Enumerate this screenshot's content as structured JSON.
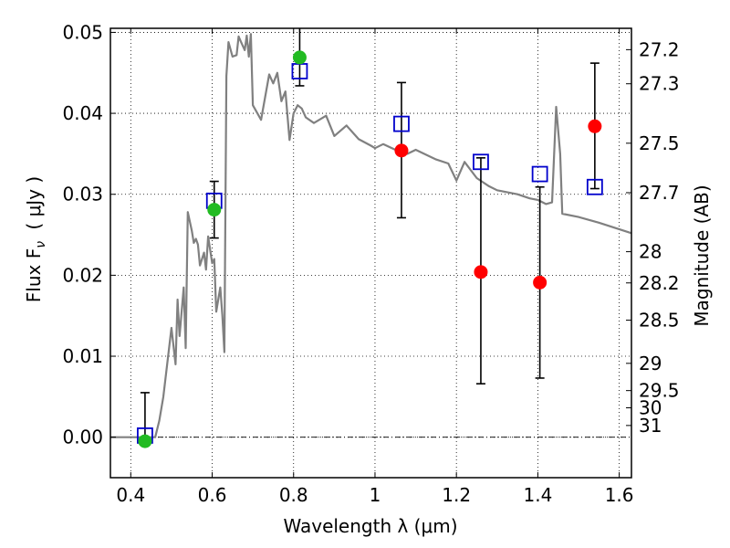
{
  "chart_data": {
    "type": "scatter",
    "xlabel": "Wavelength  λ (μm)",
    "ylabel": "Flux  F",
    "ylabel_sub": "ν",
    "ylabel_unit": "( μJy )",
    "ylabel_right": "Magnitude (AB)",
    "xlim": [
      0.35,
      1.63
    ],
    "ylim": [
      -0.005,
      0.0505
    ],
    "grid": true,
    "x_ticks": [
      0.4,
      0.6,
      0.8,
      1.0,
      1.2,
      1.4,
      1.6
    ],
    "x_tick_labels": [
      "0.4",
      "0.6",
      "0.8",
      "1",
      "1.2",
      "1.4",
      "1.6"
    ],
    "y_ticks": [
      0.0,
      0.01,
      0.02,
      0.03,
      0.04,
      0.05
    ],
    "y_tick_labels": [
      "0.00",
      "0.01",
      "0.02",
      "0.03",
      "0.04",
      "0.05"
    ],
    "mag_ticks": [
      27.2,
      27.3,
      27.5,
      27.7,
      28,
      28.2,
      28.5,
      29,
      29.5,
      30,
      31
    ],
    "mag_tick_labels": [
      "27.2",
      "27.3",
      "27.5",
      "27.7",
      "28",
      "28.2",
      "28.5",
      "29",
      "29.5",
      "30",
      "31"
    ],
    "colors": {
      "model": "#808080",
      "detection": "#22bb22",
      "nondetection": "#ff0000",
      "model_photometry": "#0000cc",
      "errorbar": "#000000"
    },
    "series": [
      {
        "kind": "model_sed",
        "x": [
          0.35,
          0.44,
          0.46,
          0.47,
          0.48,
          0.5,
          0.51,
          0.515,
          0.52,
          0.53,
          0.535,
          0.54,
          0.55,
          0.555,
          0.56,
          0.565,
          0.57,
          0.58,
          0.585,
          0.59,
          0.6,
          0.605,
          0.61,
          0.62,
          0.625,
          0.63,
          0.635,
          0.64,
          0.65,
          0.66,
          0.665,
          0.67,
          0.68,
          0.685,
          0.69,
          0.695,
          0.7,
          0.72,
          0.74,
          0.75,
          0.76,
          0.77,
          0.78,
          0.79,
          0.8,
          0.81,
          0.82,
          0.83,
          0.85,
          0.88,
          0.9,
          0.93,
          0.96,
          0.99,
          1.0,
          1.02,
          1.05,
          1.08,
          1.1,
          1.15,
          1.18,
          1.2,
          1.22,
          1.25,
          1.28,
          1.3,
          1.35,
          1.38,
          1.4,
          1.42,
          1.435,
          1.445,
          1.455,
          1.46,
          1.5,
          1.55,
          1.63
        ],
        "y": [
          0.0,
          0.0,
          0.0,
          0.002,
          0.005,
          0.0135,
          0.009,
          0.017,
          0.0125,
          0.0185,
          0.011,
          0.0278,
          0.0255,
          0.024,
          0.0245,
          0.0238,
          0.0212,
          0.0228,
          0.0207,
          0.0248,
          0.0215,
          0.022,
          0.0155,
          0.0185,
          0.015,
          0.0105,
          0.0446,
          0.0488,
          0.047,
          0.0472,
          0.0495,
          0.0489,
          0.0478,
          0.0496,
          0.047,
          0.0498,
          0.041,
          0.0392,
          0.0448,
          0.0437,
          0.045,
          0.0415,
          0.0427,
          0.0367,
          0.04,
          0.041,
          0.0406,
          0.0395,
          0.0388,
          0.0397,
          0.0372,
          0.0385,
          0.0368,
          0.036,
          0.0357,
          0.0362,
          0.0355,
          0.035,
          0.0355,
          0.0343,
          0.0338,
          0.0317,
          0.034,
          0.032,
          0.031,
          0.0305,
          0.03,
          0.0295,
          0.0293,
          0.0288,
          0.029,
          0.0408,
          0.035,
          0.0276,
          0.0272,
          0.0265,
          0.0252
        ]
      },
      {
        "kind": "model_photometry",
        "x": [
          0.435,
          0.605,
          0.815,
          1.065,
          1.26,
          1.405,
          1.54
        ],
        "y": [
          0.0002,
          0.0292,
          0.0452,
          0.0387,
          0.034,
          0.0325,
          0.0309
        ]
      },
      {
        "kind": "detections",
        "x": [
          0.435,
          0.605,
          0.815
        ],
        "y": [
          -0.0005,
          0.0281,
          0.0469
        ]
      },
      {
        "kind": "measurements",
        "x": [
          1.065,
          1.26,
          1.405,
          1.54
        ],
        "y": [
          0.0354,
          0.0204,
          0.0191,
          0.0384
        ]
      },
      {
        "kind": "errorbars",
        "x": [
          0.435,
          0.605,
          0.815,
          1.065,
          1.26,
          1.405,
          1.54
        ],
        "y_low": [
          -0.0005,
          0.0246,
          0.0434,
          0.0271,
          0.0066,
          0.0073,
          0.0307
        ],
        "y_high": [
          0.0055,
          0.0316,
          0.0506,
          0.0438,
          0.0345,
          0.0309,
          0.0462
        ]
      }
    ]
  }
}
